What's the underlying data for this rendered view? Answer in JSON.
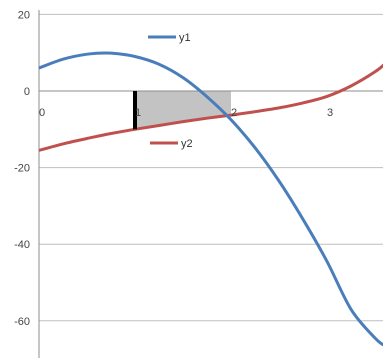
{
  "chart_data": {
    "type": "line",
    "title": "",
    "xlabel": "",
    "ylabel": "",
    "xlim": [
      0,
      3.6
    ],
    "ylim": [
      -67,
      20
    ],
    "x_ticks": [
      "0",
      "1",
      "2",
      "3"
    ],
    "y_ticks": [
      "20",
      "0",
      "-20",
      "-40",
      "-60"
    ],
    "grid": "horizontal",
    "series": [
      {
        "name": "y1",
        "color": "#4a7ebb",
        "x": [
          0,
          0.25,
          0.5,
          0.75,
          1.0,
          1.25,
          1.5,
          1.75,
          2.0,
          2.25,
          2.5,
          2.75,
          3.0,
          3.25,
          3.5,
          3.6
        ],
        "y": [
          6,
          8.3,
          9.6,
          9.9,
          9.0,
          7.0,
          3.5,
          -1.5,
          -7.5,
          -14.8,
          -23.5,
          -33.5,
          -44.5,
          -57.0,
          -64.5,
          -66.5
        ]
      },
      {
        "name": "y2",
        "color": "#c0504d",
        "x": [
          0,
          0.25,
          0.5,
          0.75,
          1.0,
          1.25,
          1.5,
          1.75,
          2.0,
          2.25,
          2.5,
          2.75,
          3.0,
          3.25,
          3.5,
          3.6
        ],
        "y": [
          -15.5,
          -13.8,
          -12.4,
          -11.1,
          -10.0,
          -9.0,
          -8.0,
          -7.1,
          -6.3,
          -5.4,
          -4.4,
          -3.1,
          -1.4,
          1.3,
          5.0,
          7.0
        ]
      }
    ],
    "shaded_region": {
      "x_from": 1.0,
      "x_to": 2.0,
      "color": "#bdbdbd"
    },
    "marker_line": {
      "x": 1.0,
      "y_from": 0,
      "y_to": -10.0,
      "color": "#000000"
    },
    "legend": [
      {
        "label": "y1",
        "placement": "top-center"
      },
      {
        "label": "y2",
        "placement": "middle-center"
      }
    ]
  }
}
